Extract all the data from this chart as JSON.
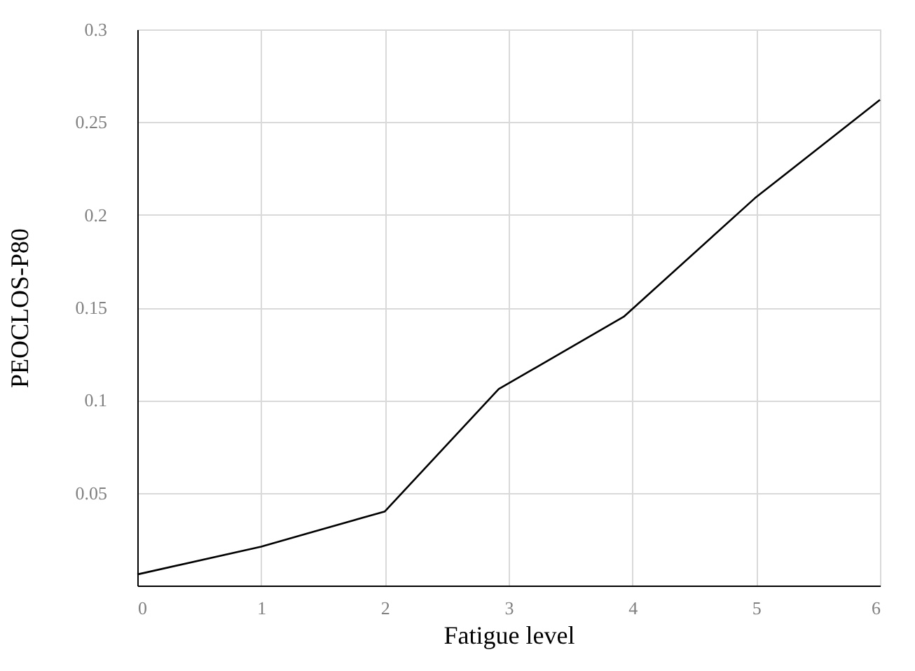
{
  "chart_data": {
    "type": "line",
    "xlabel": "Fatigue level",
    "ylabel": "PEOCLOS-P80",
    "x": [
      0,
      1,
      2,
      2.92,
      3.93,
      4.99,
      6
    ],
    "series": [
      {
        "color": "#000000",
        "values": [
          0.006,
          0.021,
          0.04,
          0.106,
          0.145,
          0.209,
          0.262
        ]
      }
    ],
    "xlim": [
      0,
      6
    ],
    "xticks": [
      0,
      1,
      2,
      3,
      4,
      5,
      6
    ],
    "ylim": [
      0,
      0.3
    ],
    "yticks": [
      0.05,
      0.1,
      0.15,
      0.2,
      0.25,
      0.3
    ],
    "grid": true,
    "marker": "none",
    "line_style": "solid"
  }
}
